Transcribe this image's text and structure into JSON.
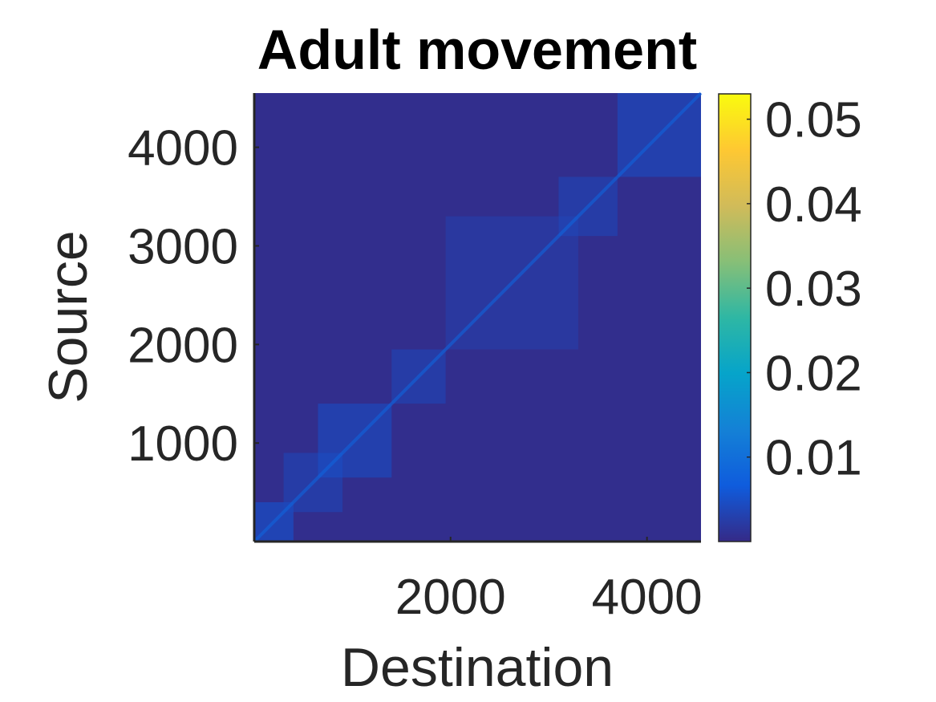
{
  "chart_data": {
    "type": "heatmap",
    "title": "Adult movement",
    "xlabel": "Destination",
    "ylabel": "Source",
    "xlim": [
      1,
      4550
    ],
    "ylim": [
      1,
      4550
    ],
    "x_ticks": [
      2000,
      4000
    ],
    "y_ticks": [
      1000,
      2000,
      3000,
      4000
    ],
    "colorbar": {
      "min": 0,
      "max": 0.053,
      "ticks": [
        0.01,
        0.02,
        0.03,
        0.04,
        0.05
      ],
      "tick_labels": [
        "0.01",
        "0.02",
        "0.03",
        "0.04",
        "0.05"
      ],
      "colormap": "parula",
      "colors": [
        "#352a87",
        "#0f5cdd",
        "#1481d6",
        "#06a4ca",
        "#2eb7a4",
        "#87bf77",
        "#d1bb59",
        "#fec832",
        "#f9fb0e"
      ]
    },
    "blocks": [
      {
        "from": 1,
        "to": 400,
        "value": 0.006
      },
      {
        "from": 300,
        "to": 900,
        "value": 0.004
      },
      {
        "from": 650,
        "to": 1400,
        "value": 0.005
      },
      {
        "from": 1400,
        "to": 1950,
        "value": 0.004
      },
      {
        "from": 1950,
        "to": 3300,
        "value": 0.003
      },
      {
        "from": 3100,
        "to": 3700,
        "value": 0.004
      },
      {
        "from": 3700,
        "to": 4550,
        "value": 0.005
      }
    ],
    "diagonal_value": 0.008,
    "background_value": 0.0005
  }
}
